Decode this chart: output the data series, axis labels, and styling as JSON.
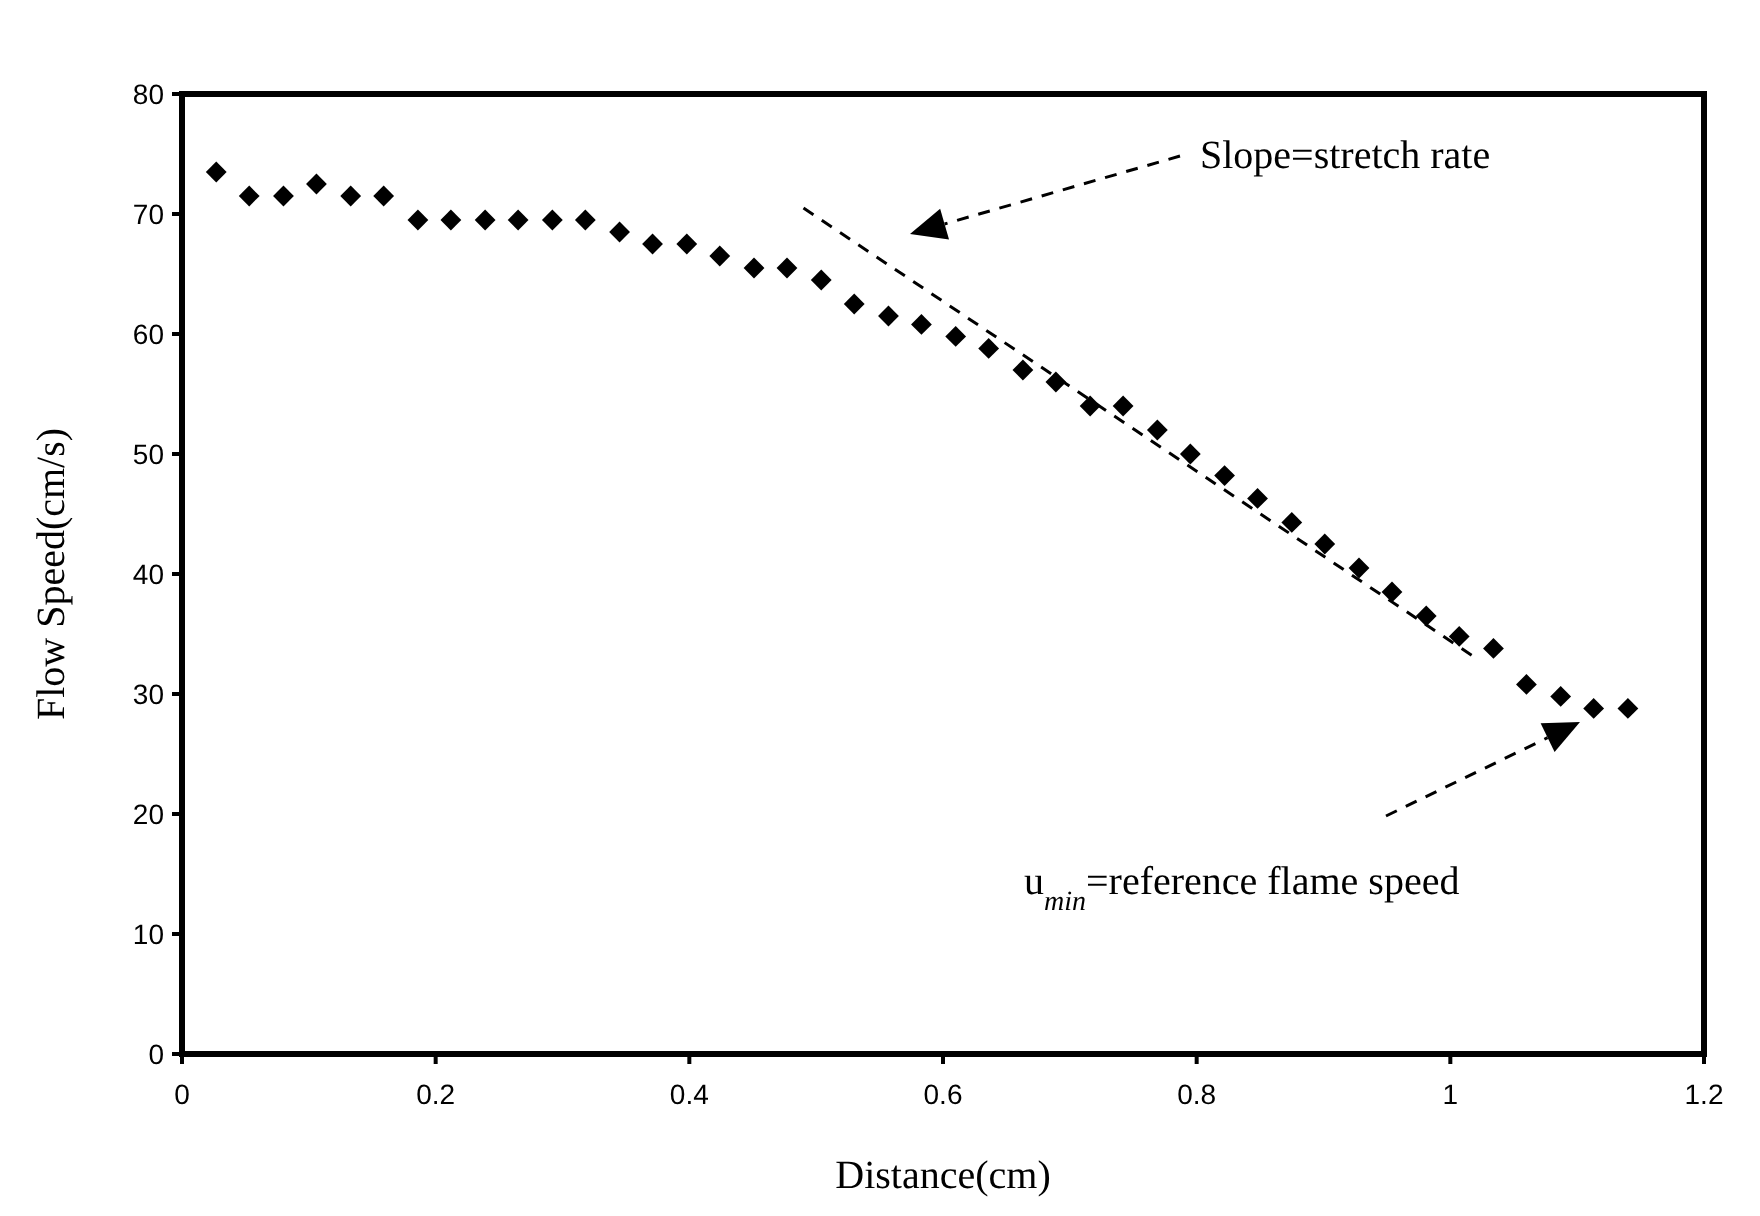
{
  "chart_data": {
    "type": "scatter",
    "xlabel": "Distance(cm)",
    "ylabel": "Flow Speed(cm/s)",
    "xlim": [
      0,
      1.2
    ],
    "xticks": [
      0,
      0.2,
      0.4,
      0.6,
      0.8,
      1,
      1.2
    ],
    "ylim": [
      0,
      80
    ],
    "yticks": [
      0,
      10,
      20,
      30,
      40,
      50,
      60,
      70,
      80
    ],
    "grid": false,
    "marker": "diamond",
    "annotations": [
      "Slope=stretch rate",
      "u$_{min}$=reference flame speed"
    ],
    "series": [
      {
        "color": "#000000",
        "x": [
          0.027,
          0.053,
          0.08,
          0.106,
          0.133,
          0.159,
          0.186,
          0.212,
          0.239,
          0.265,
          0.292,
          0.318,
          0.345,
          0.371,
          0.398,
          0.424,
          0.451,
          0.477,
          0.504,
          0.53,
          0.557,
          0.583,
          0.61,
          0.636,
          0.663,
          0.689,
          0.716,
          0.742,
          0.769,
          0.795,
          0.822,
          0.848,
          0.875,
          0.901,
          0.928,
          0.954,
          0.981,
          1.007,
          1.034,
          1.06,
          1.087,
          1.113,
          1.14
        ],
        "values": [
          73.5,
          71.5,
          71.5,
          72.5,
          71.5,
          71.5,
          69.5,
          69.5,
          69.5,
          69.5,
          69.5,
          69.5,
          68.5,
          67.5,
          67.5,
          66.5,
          65.5,
          65.5,
          64.5,
          62.5,
          61.5,
          60.8,
          59.8,
          58.8,
          57,
          56,
          54,
          54,
          52,
          50,
          48.2,
          46.3,
          44.3,
          42.5,
          40.5,
          38.5,
          36.5,
          34.8,
          33.8,
          30.8,
          29.8,
          28.8,
          28.8
        ]
      },
      {
        "type": "line",
        "color": "#000000",
        "line_style": "dashed",
        "marker": "none",
        "x": [
          0.49,
          1.02
        ],
        "values": [
          70.5,
          33
        ]
      }
    ]
  }
}
